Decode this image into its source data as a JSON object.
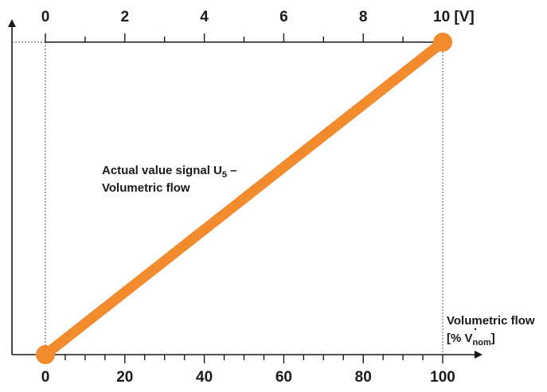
{
  "chart_data": {
    "type": "line",
    "title": "",
    "colors": {
      "series": "#f28a2e",
      "axis": "#1a1a1a"
    },
    "x_axis_bottom": {
      "range": [
        0,
        100
      ],
      "major_ticks": [
        0,
        20,
        40,
        60,
        80,
        100
      ],
      "minor_step": 5,
      "tick_labels": [
        "0",
        "20",
        "40",
        "60",
        "80",
        "100"
      ],
      "label_line1": "Volumetric flow",
      "label_line2_prefix": "[% V",
      "label_line2_dot": "·",
      "label_line2_sub": "nom",
      "label_line2_suffix": "]"
    },
    "x_axis_top": {
      "range": [
        0,
        10
      ],
      "major_ticks": [
        0,
        2,
        4,
        6,
        8,
        10
      ],
      "minor_step": 1,
      "tick_labels": [
        "0",
        "2",
        "4",
        "6",
        "8",
        "10 [V]"
      ]
    },
    "series": [
      {
        "label_line1_prefix": "Actual value signal U",
        "label_line1_sub": "5",
        "label_line1_suffix": " –",
        "label_line2": "Volumetric flow",
        "x": [
          0,
          100
        ],
        "y_volts": [
          0,
          10
        ]
      }
    ],
    "grid": false
  }
}
